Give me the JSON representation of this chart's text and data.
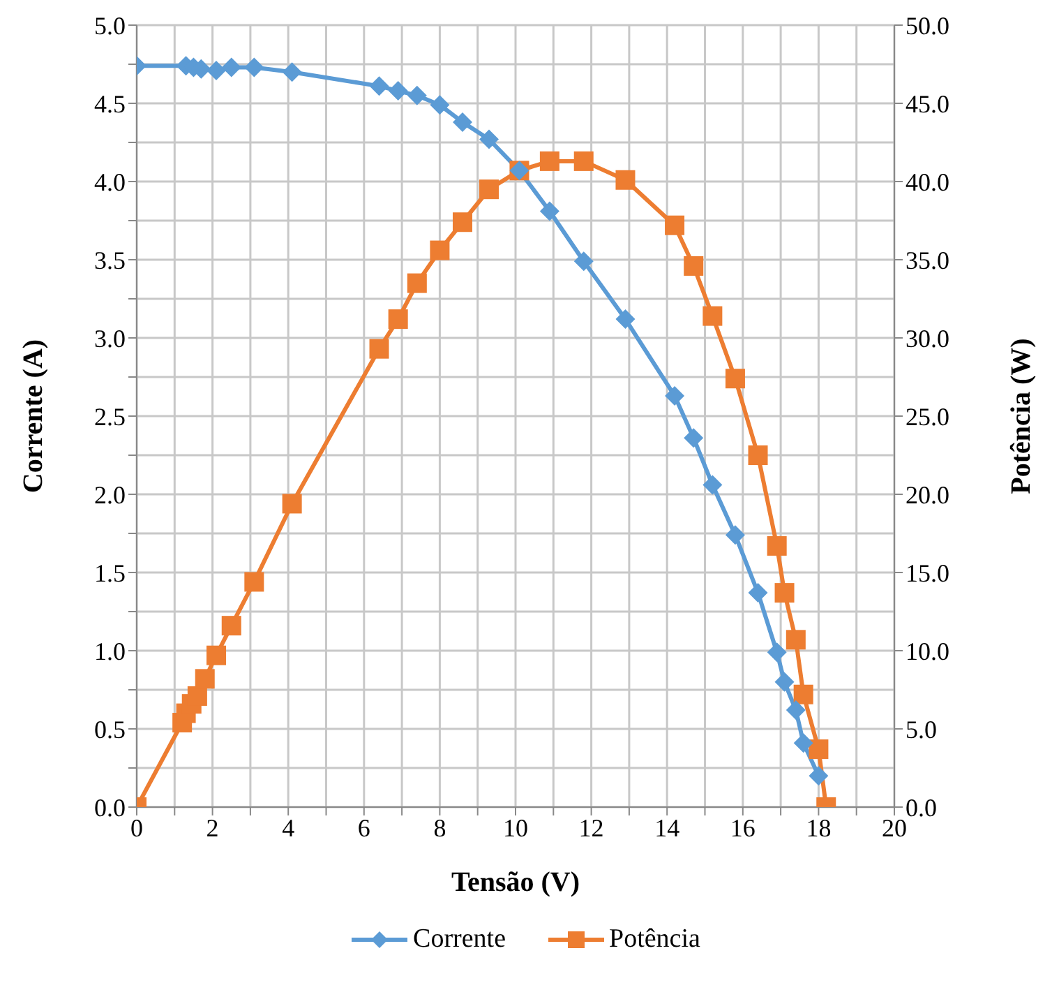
{
  "chart_data": {
    "type": "line",
    "xlabel": "Tensão (V)",
    "ylabel": "Corrente (A)",
    "y2label": "Potência (W)",
    "xlim": [
      0,
      20
    ],
    "xticks": [
      0,
      {
        "value": 1,
        "label": null
      },
      2,
      {
        "value": 3,
        "label": null
      },
      4,
      {
        "value": 5,
        "label": null
      },
      6,
      {
        "value": 7,
        "label": null
      },
      8,
      {
        "value": 9,
        "label": null
      },
      10,
      {
        "value": 11,
        "label": null
      },
      12,
      {
        "value": 13,
        "label": null
      },
      14,
      {
        "value": 15,
        "label": null
      },
      16,
      {
        "value": 17,
        "label": null
      },
      18,
      {
        "value": 19,
        "label": null
      },
      20
    ],
    "ylim": [
      0,
      5
    ],
    "yticks": [
      {
        "value": 0,
        "label": "0.0"
      },
      {
        "value": 0.25,
        "label": null
      },
      {
        "value": 0.5,
        "label": "0.5"
      },
      {
        "value": 0.75,
        "label": null
      },
      {
        "value": 1,
        "label": "1.0"
      },
      {
        "value": 1.25,
        "label": null
      },
      {
        "value": 1.5,
        "label": "1.5"
      },
      {
        "value": 1.75,
        "label": null
      },
      {
        "value": 2,
        "label": "2.0"
      },
      {
        "value": 2.25,
        "label": null
      },
      {
        "value": 2.5,
        "label": "2.5"
      },
      {
        "value": 2.75,
        "label": null
      },
      {
        "value": 3,
        "label": "3.0"
      },
      {
        "value": 3.25,
        "label": null
      },
      {
        "value": 3.5,
        "label": "3.5"
      },
      {
        "value": 3.75,
        "label": null
      },
      {
        "value": 4,
        "label": "4.0"
      },
      {
        "value": 4.25,
        "label": null
      },
      {
        "value": 4.5,
        "label": "4.5"
      },
      {
        "value": 4.75,
        "label": null
      },
      {
        "value": 5,
        "label": "5.0"
      }
    ],
    "y2lim": [
      0,
      50
    ],
    "y2ticks": [
      {
        "value": 0,
        "label": "0.0"
      },
      {
        "value": 5,
        "label": "5.0"
      },
      {
        "value": 10,
        "label": "10.0"
      },
      {
        "value": 15,
        "label": "15.0"
      },
      {
        "value": 20,
        "label": "20.0"
      },
      {
        "value": 25,
        "label": "25.0"
      },
      {
        "value": 30,
        "label": "30.0"
      },
      {
        "value": 35,
        "label": "35.0"
      },
      {
        "value": 40,
        "label": "40.0"
      },
      {
        "value": 45,
        "label": "45.0"
      },
      {
        "value": 50,
        "label": "50.0"
      }
    ],
    "grid": true,
    "legend": "bottom",
    "line_style": "solid",
    "series": [
      {
        "name": "Corrente",
        "color": "#5b9bd5",
        "marker": "diamond",
        "x": [
          0,
          1.3,
          1.5,
          1.7,
          2.1,
          2.5,
          3.1,
          4.1,
          6.4,
          6.9,
          7.4,
          8.0,
          8.6,
          9.3,
          10.1,
          10.9,
          11.8,
          12.9,
          14.2,
          14.7,
          15.2,
          15.8,
          16.4,
          16.9,
          17.1,
          17.4,
          17.6,
          18.0
        ],
        "values": [
          4.74,
          4.74,
          4.73,
          4.72,
          4.71,
          4.73,
          4.73,
          4.7,
          4.61,
          4.58,
          4.55,
          4.49,
          4.38,
          4.27,
          4.07,
          3.81,
          3.49,
          3.12,
          2.63,
          2.36,
          2.06,
          1.74,
          1.37,
          0.99,
          0.8,
          0.62,
          0.41,
          0.2
        ]
      },
      {
        "name": "Potência",
        "color": "#ed7d31",
        "marker": "square",
        "axis": "y2",
        "x": [
          0,
          1.2,
          1.3,
          1.45,
          1.6,
          1.8,
          2.1,
          2.5,
          3.1,
          4.1,
          6.4,
          6.9,
          7.4,
          8.0,
          8.6,
          9.3,
          10.1,
          10.9,
          11.8,
          12.9,
          14.2,
          14.7,
          15.2,
          15.8,
          16.4,
          16.9,
          17.1,
          17.4,
          17.6,
          18.0,
          18.2
        ],
        "values": [
          0,
          5.4,
          6.0,
          6.6,
          7.1,
          8.2,
          9.7,
          11.6,
          14.4,
          19.4,
          29.3,
          31.2,
          33.5,
          35.6,
          37.4,
          39.5,
          40.7,
          41.3,
          41.3,
          40.1,
          37.2,
          34.6,
          31.4,
          27.4,
          22.5,
          16.7,
          13.7,
          10.7,
          7.2,
          3.7,
          0
        ]
      }
    ]
  }
}
